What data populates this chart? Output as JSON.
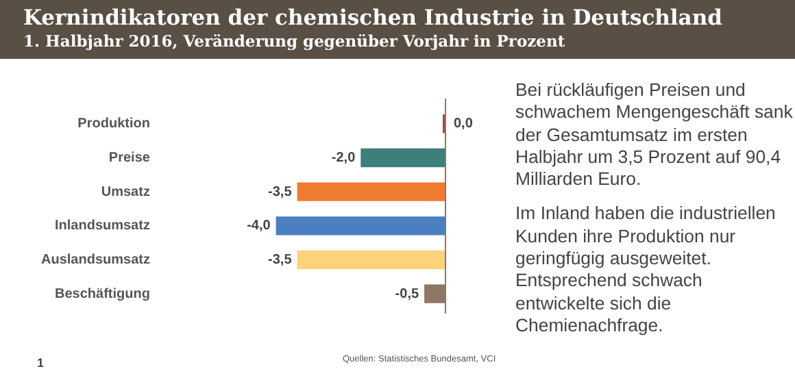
{
  "chart_data": {
    "type": "bar",
    "orientation": "horizontal",
    "title": "Kernindikatoren der chemischen Industrie in Deutschland",
    "subtitle": "1. Halbjahr 2016, Veränderung gegenüber Vorjahr in Prozent",
    "categories": [
      "Produktion",
      "Preise",
      "Umsatz",
      "Inlandsumsatz",
      "Auslandsumsatz",
      "Beschäftigung"
    ],
    "values": [
      0.0,
      -2.0,
      -3.5,
      -4.0,
      -3.5,
      -0.5
    ],
    "colors": [
      "#9b4a5a",
      "#3d7f7a",
      "#ee7b2f",
      "#4a7fc0",
      "#fcd27a",
      "#8e7764"
    ],
    "value_labels": [
      "0,0",
      "-2,0",
      "-3,5",
      "-4,0",
      "-3,5",
      "-0,5"
    ],
    "annotations": [
      "Bei rückläufigen Preisen und schwachem Mengengeschäft sank der Gesamtumsatz im ersten Halbjahr um 3,5 Prozent auf 90,4 Milliarden Euro.",
      "Im Inland haben die industriellen Kunden ihre Produktion nur geringfügig ausgeweitet. Entsprechend schwach entwickelte sich die Chemienachfrage.",
      "Quellen: Statistisches Bundesamt, VCI",
      "1"
    ]
  }
}
